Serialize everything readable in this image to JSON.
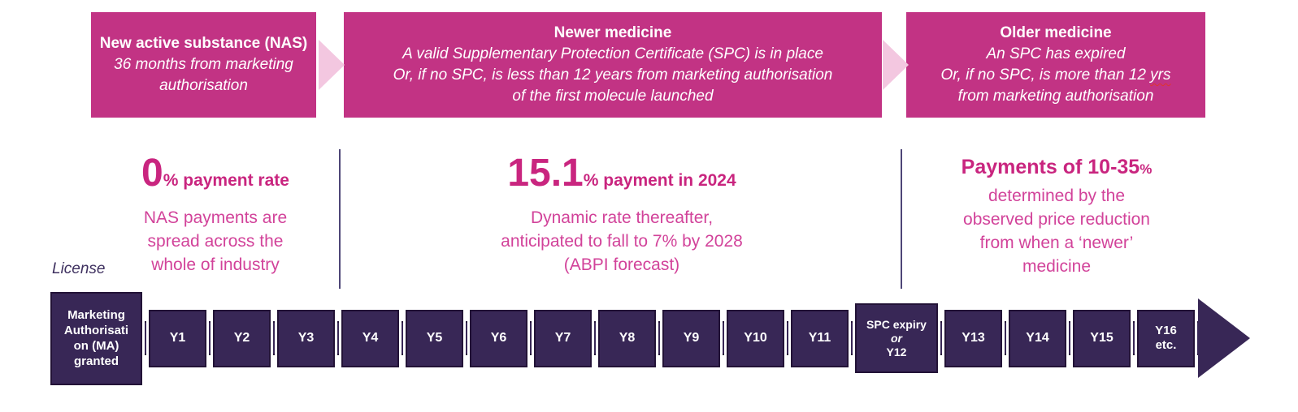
{
  "colors": {
    "header_bg": "#C23384",
    "chevron": "#F3C7E0",
    "pink_strong": "#C9257F",
    "pink_text": "#D2439A",
    "box_purple": "#382756",
    "box_border": "#231337",
    "divider": "#4E4677",
    "license_text": "#3F3160",
    "squiggle_red": "#E0342C"
  },
  "header": {
    "boxes": [
      {
        "title": "New active substance (NAS)",
        "subtitle": "36 months from marketing authorisation"
      },
      {
        "title": "Newer medicine",
        "lines": [
          "A valid Supplementary Protection Certificate (SPC) is in place",
          "Or, if no SPC, is less than 12 years from marketing authorisation",
          "of the first molecule launched"
        ]
      },
      {
        "title": "Older medicine",
        "line1": "An SPC has expired",
        "line2_prefix": "Or, if no SPC, is more than 12 ",
        "line2_misspelled": "yrs",
        "line3": "from marketing authorisation"
      }
    ]
  },
  "sections": [
    {
      "big": "0",
      "suffix": "% payment rate",
      "lines": [
        "NAS payments are",
        "spread across the",
        "whole of industry"
      ]
    },
    {
      "big": "15.1",
      "suffix": "% payment in 2024",
      "lines": [
        "Dynamic rate thereafter,",
        "anticipated to fall to 7% by 2028",
        "(ABPI forecast)"
      ]
    },
    {
      "title": "Payments of 10-35",
      "title_pct": "%",
      "lines": [
        "determined by the",
        "observed price reduction",
        "from when a ‘newer’",
        "medicine"
      ]
    }
  ],
  "timeline": {
    "license_label": "License",
    "ma_lines": [
      "Marketing",
      "Authorisati",
      "on (MA)",
      "granted"
    ],
    "years_before": [
      "Y1",
      "Y2",
      "Y3",
      "Y4",
      "Y5",
      "Y6",
      "Y7",
      "Y8",
      "Y9",
      "Y10",
      "Y11"
    ],
    "spc_lines": [
      "SPC expiry",
      "or",
      "Y12"
    ],
    "years_after": [
      "Y13",
      "Y14",
      "Y15"
    ],
    "last_lines": [
      "Y16",
      "etc."
    ]
  }
}
